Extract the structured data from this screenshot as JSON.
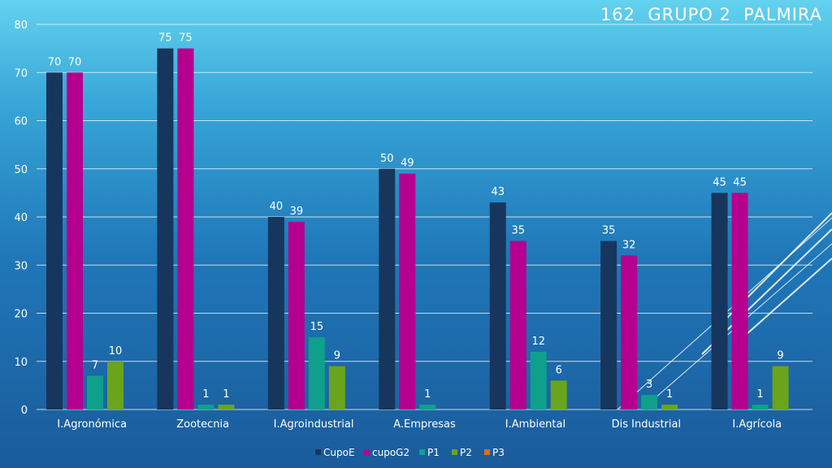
{
  "slide": {
    "title": "162  GRUPO 2  PALMIRA"
  },
  "chart_data": {
    "type": "bar",
    "title": "162  GRUPO 2  PALMIRA",
    "categories": [
      "I.Agronómica",
      "Zootecnia",
      "I.Agroindustrial",
      "A.Empresas",
      "I.Ambiental",
      "Dis Industrial",
      "I.Agrícola"
    ],
    "series": [
      {
        "name": "CupoE",
        "color": "#17365d",
        "values": [
          70,
          75,
          40,
          50,
          43,
          35,
          45
        ]
      },
      {
        "name": "cupoG2",
        "color": "#b5008f",
        "values": [
          70,
          75,
          39,
          49,
          35,
          32,
          45
        ]
      },
      {
        "name": "P1",
        "color": "#0fa08c",
        "values": [
          7,
          1,
          15,
          1,
          12,
          3,
          1
        ]
      },
      {
        "name": "P2",
        "color": "#6aa41c",
        "values": [
          10,
          1,
          9,
          null,
          6,
          1,
          9
        ]
      },
      {
        "name": "P3",
        "color": "#e46c0a",
        "values": [
          null,
          null,
          null,
          null,
          null,
          null,
          null
        ]
      }
    ],
    "ylim": [
      0,
      80
    ],
    "yticks": [
      0,
      10,
      20,
      30,
      40,
      50,
      60,
      70,
      80
    ],
    "grid": true,
    "legend_position": "bottom"
  }
}
